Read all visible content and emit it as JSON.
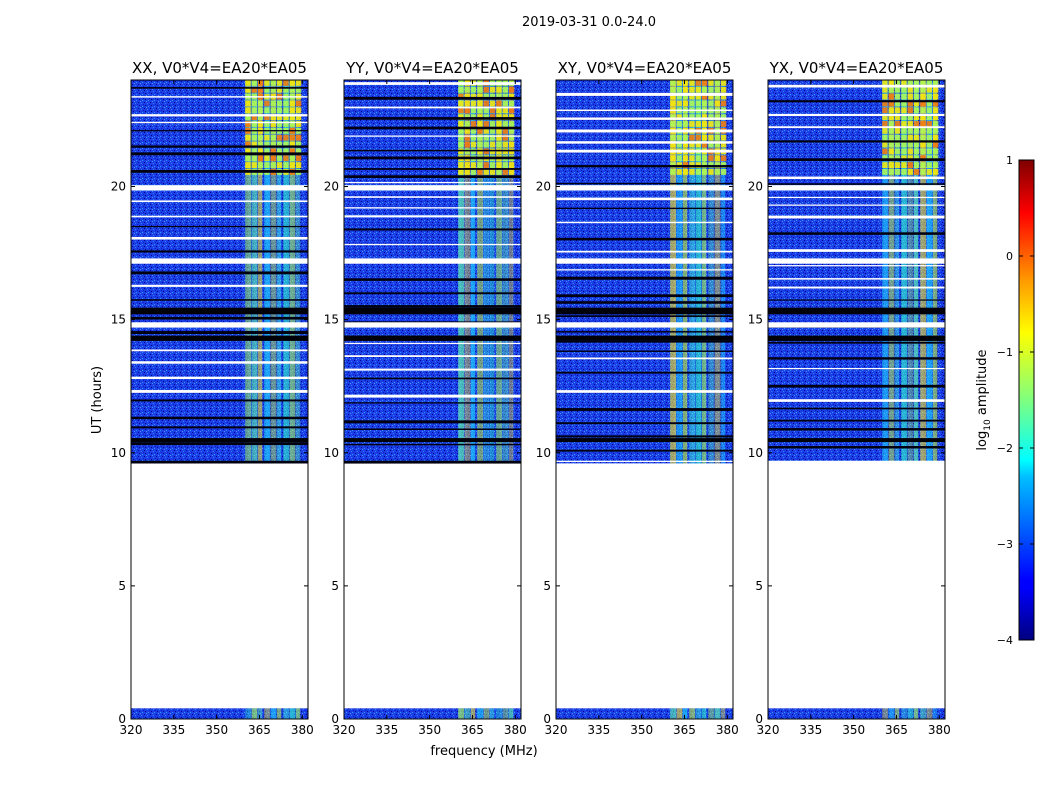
{
  "chart_data": {
    "type": "heatmap",
    "title": "2019-03-31 0.0-24.0",
    "xlabel": "frequency (MHz)",
    "ylabel": "UT (hours)",
    "xlim": [
      320,
      382
    ],
    "ylim": [
      0,
      24
    ],
    "xticks": [
      320,
      335,
      350,
      365,
      380
    ],
    "yticks": [
      0,
      5,
      10,
      15,
      20
    ],
    "panels": [
      {
        "title": "XX, V0*V4=EA20*EA05"
      },
      {
        "title": "YY, V0*V4=EA20*EA05"
      },
      {
        "title": "XY, V0*V4=EA20*EA05"
      },
      {
        "title": "YX, V0*V4=EA20*EA05"
      }
    ],
    "colorbar": {
      "label_main": "log",
      "label_sub": "10",
      "label_tail": " amplitude",
      "range": [
        -4,
        1
      ],
      "ticks": [
        1,
        0,
        -1,
        -2,
        -3,
        -4
      ]
    },
    "data_time_ranges": [
      [
        0.0,
        0.4
      ],
      [
        9.6,
        24.0
      ]
    ],
    "rfi_band_mhz": [
      360,
      380
    ],
    "blank_time_bands": [
      [
        19.85,
        20.05
      ],
      [
        17.1,
        17.3
      ],
      [
        14.7,
        14.9
      ]
    ]
  }
}
